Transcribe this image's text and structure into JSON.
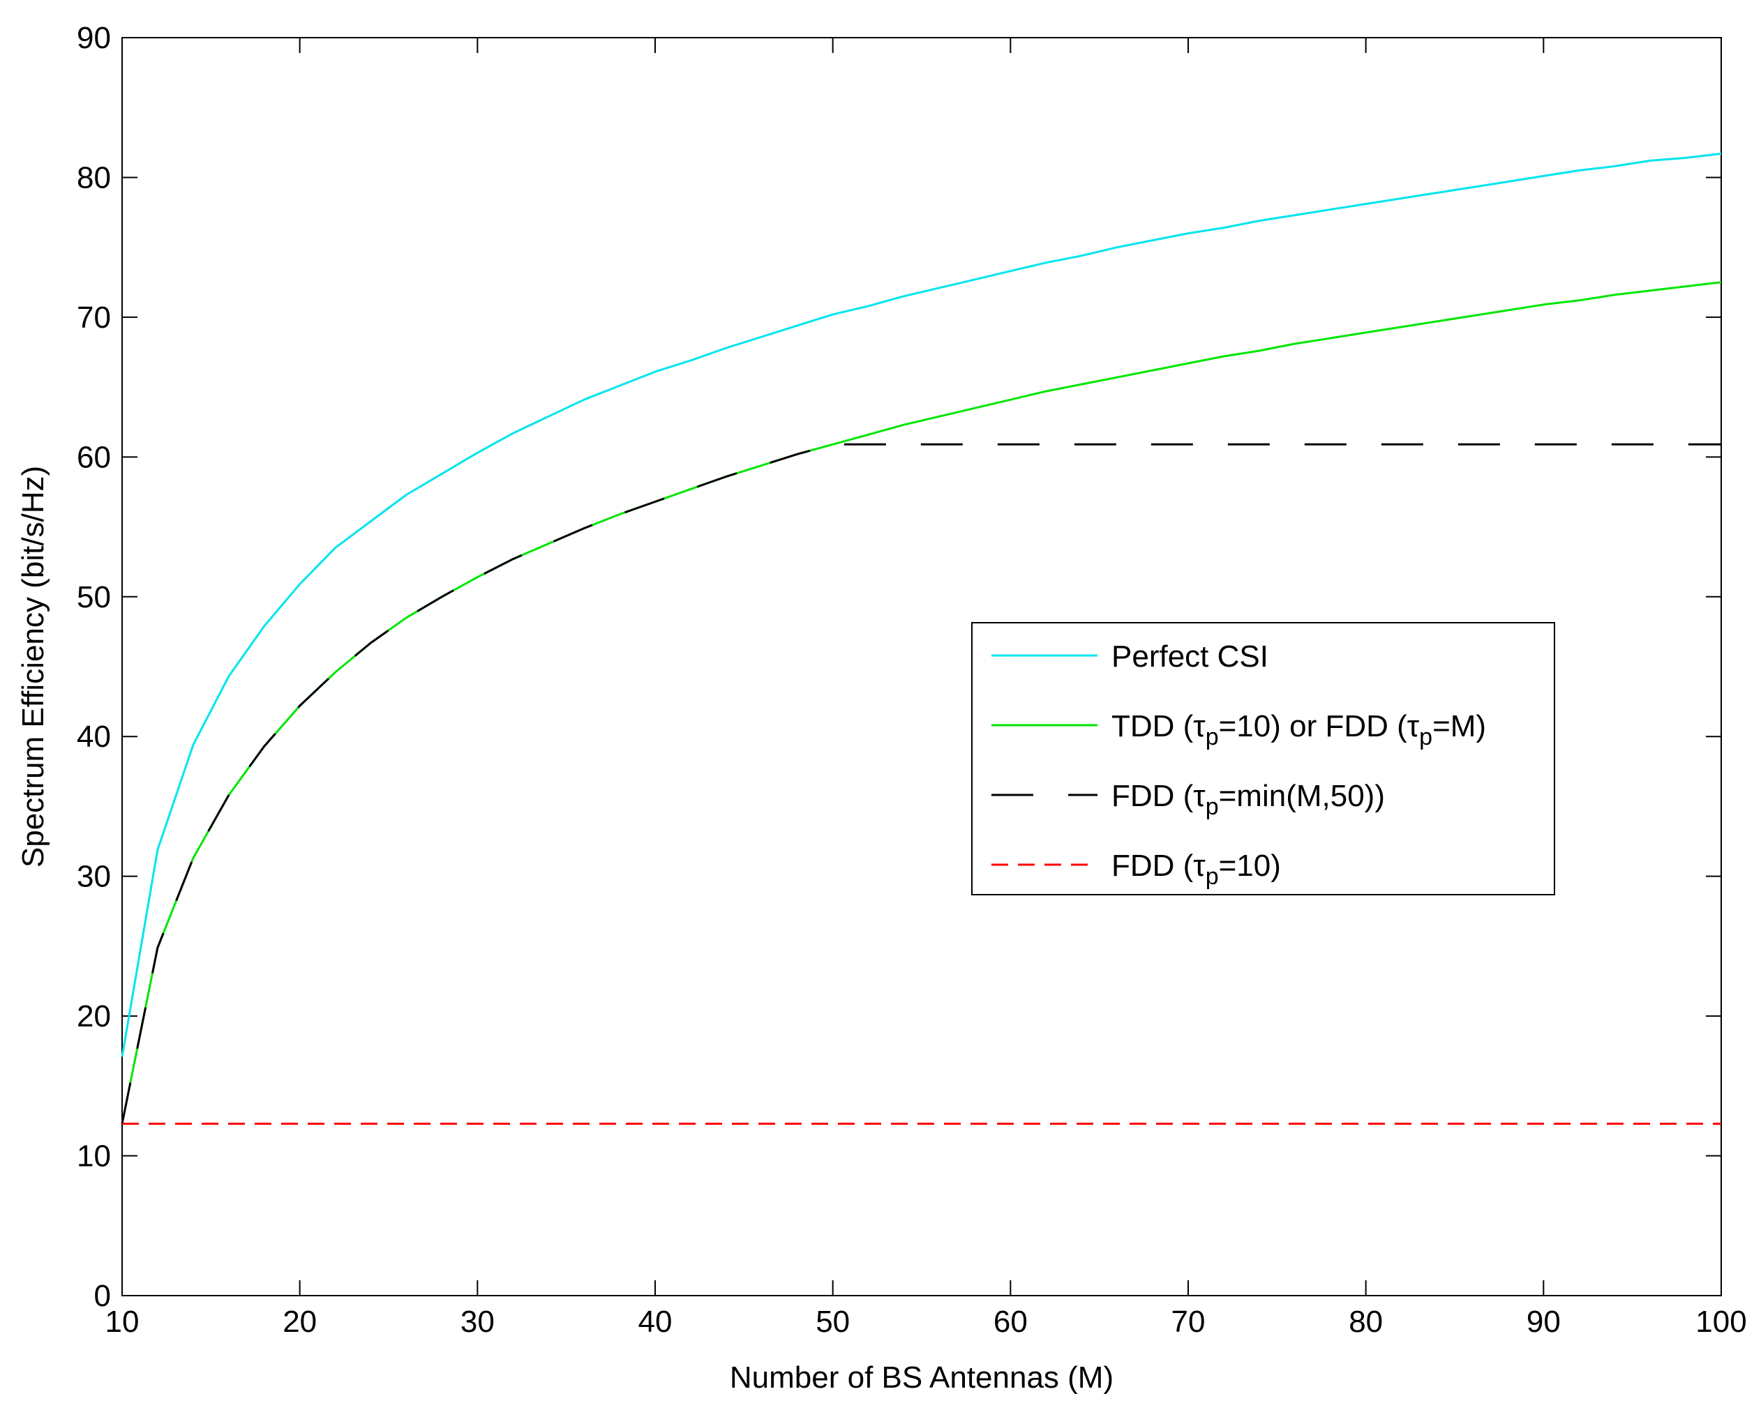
{
  "chart_data": {
    "type": "line",
    "title": "",
    "xlabel": "Number of BS Antennas (M)",
    "ylabel": "Spectrum Efficiency (bit/s/Hz)",
    "xlim": [
      10,
      100
    ],
    "ylim": [
      0,
      90
    ],
    "xticks": [
      10,
      20,
      30,
      40,
      50,
      60,
      70,
      80,
      90,
      100
    ],
    "yticks": [
      0,
      10,
      20,
      30,
      40,
      50,
      60,
      70,
      80,
      90
    ],
    "grid": false,
    "legend_position": "center-right",
    "series": [
      {
        "name": "Perfect CSI",
        "legend_parts": [
          "Perfect CSI"
        ],
        "color": "#00e5ee",
        "dash": "solid",
        "x": [
          10,
          12,
          14,
          16,
          18,
          20,
          22,
          24,
          26,
          28,
          30,
          32,
          34,
          36,
          38,
          40,
          42,
          44,
          46,
          48,
          50,
          52,
          54,
          56,
          58,
          60,
          62,
          64,
          66,
          68,
          70,
          72,
          74,
          76,
          78,
          80,
          82,
          84,
          86,
          88,
          90,
          92,
          94,
          96,
          98,
          100
        ],
        "y": [
          17.1,
          31.9,
          39.4,
          44.3,
          47.9,
          50.9,
          53.5,
          55.4,
          57.3,
          58.8,
          60.3,
          61.7,
          62.9,
          64.1,
          65.1,
          66.1,
          66.9,
          67.8,
          68.6,
          69.4,
          70.2,
          70.8,
          71.5,
          72.1,
          72.7,
          73.3,
          73.9,
          74.4,
          75.0,
          75.5,
          76.0,
          76.4,
          76.9,
          77.3,
          77.7,
          78.1,
          78.5,
          78.9,
          79.3,
          79.7,
          80.1,
          80.5,
          80.8,
          81.2,
          81.4,
          81.7
        ]
      },
      {
        "name": "TDD (τp=10) or FDD (τp=M)",
        "legend_parts": [
          "TDD (τ",
          "p",
          "=10) or FDD (τ",
          "p",
          "=M)"
        ],
        "color": "#00e600",
        "dash": "solid",
        "x": [
          10,
          12,
          14,
          16,
          18,
          20,
          22,
          24,
          26,
          28,
          30,
          32,
          34,
          36,
          38,
          40,
          42,
          44,
          46,
          48,
          50,
          52,
          54,
          56,
          58,
          60,
          62,
          64,
          66,
          68,
          70,
          72,
          74,
          76,
          78,
          80,
          82,
          84,
          86,
          88,
          90,
          92,
          94,
          96,
          98,
          100
        ],
        "y": [
          12.3,
          24.9,
          31.3,
          35.8,
          39.3,
          42.2,
          44.6,
          46.7,
          48.5,
          50.0,
          51.4,
          52.7,
          53.8,
          54.9,
          55.9,
          56.8,
          57.7,
          58.6,
          59.4,
          60.2,
          60.9,
          61.6,
          62.3,
          62.9,
          63.5,
          64.1,
          64.7,
          65.2,
          65.7,
          66.2,
          66.7,
          67.2,
          67.6,
          68.1,
          68.5,
          68.9,
          69.3,
          69.7,
          70.1,
          70.5,
          70.9,
          71.2,
          71.6,
          71.9,
          72.2,
          72.5
        ]
      },
      {
        "name": "FDD (τp=min(M,50))",
        "legend_parts": [
          "FDD (τ",
          "p",
          "=min(M,50))"
        ],
        "color": "#000000",
        "dash": "long-dash",
        "x": [
          10,
          12,
          14,
          16,
          18,
          20,
          22,
          24,
          26,
          28,
          30,
          32,
          34,
          36,
          38,
          40,
          42,
          44,
          46,
          48,
          50,
          60,
          70,
          80,
          90,
          100
        ],
        "y": [
          12.3,
          24.9,
          31.3,
          35.8,
          39.3,
          42.2,
          44.6,
          46.7,
          48.5,
          50.0,
          51.4,
          52.7,
          53.8,
          54.9,
          55.9,
          56.8,
          57.7,
          58.6,
          59.4,
          60.2,
          60.9,
          60.9,
          60.9,
          60.9,
          60.9,
          60.9
        ]
      },
      {
        "name": "FDD (τp=10)",
        "legend_parts": [
          "FDD (τ",
          "p",
          "=10)"
        ],
        "color": "#ff0000",
        "dash": "dash",
        "x": [
          10,
          100
        ],
        "y": [
          12.3,
          12.3
        ]
      }
    ]
  }
}
